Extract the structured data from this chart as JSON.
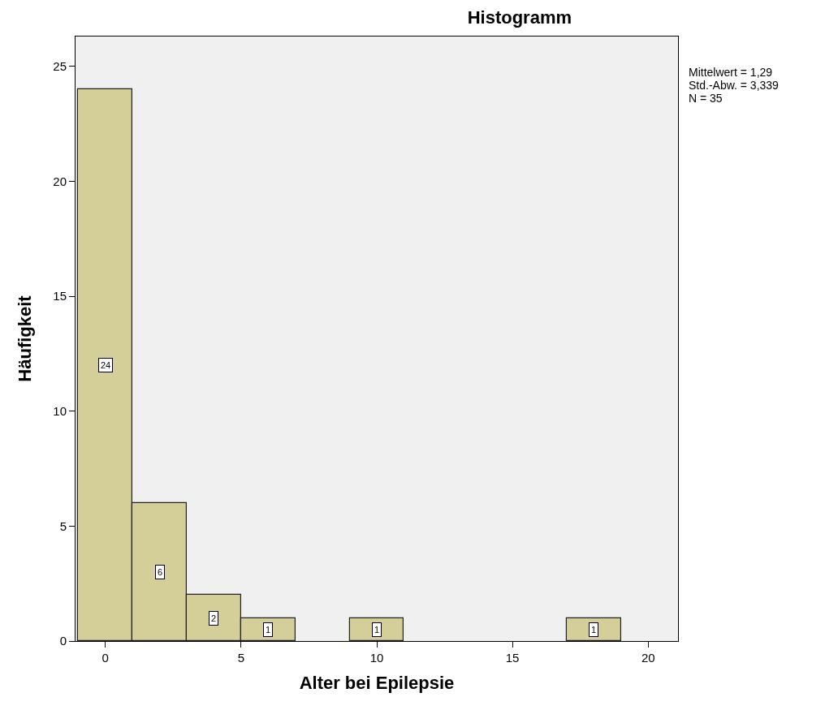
{
  "chart_data": {
    "type": "histogram",
    "title": "Histogramm",
    "xlabel": "Alter bei Epilepsie",
    "ylabel": "Häufigkeit",
    "bins": [
      -1,
      1,
      3,
      5,
      7,
      9,
      11,
      13,
      15,
      17,
      19
    ],
    "values": [
      24,
      6,
      2,
      1,
      0,
      1,
      0,
      0,
      0,
      1
    ],
    "value_labels": [
      "24",
      "6",
      "2",
      "1",
      null,
      "1",
      null,
      null,
      null,
      "1"
    ],
    "color": "#d4cf98",
    "xlim": [
      -1.1,
      21.1
    ],
    "xticks": [
      0,
      5,
      10,
      15,
      20
    ],
    "ylim": [
      0,
      26.3
    ],
    "yticks": [
      0,
      5,
      10,
      15,
      20,
      25
    ],
    "grid": false,
    "legend": false,
    "annotations": [
      "Mittelwert = 1,29",
      "Std.-Abw. = 3,339",
      "N = 35"
    ]
  }
}
